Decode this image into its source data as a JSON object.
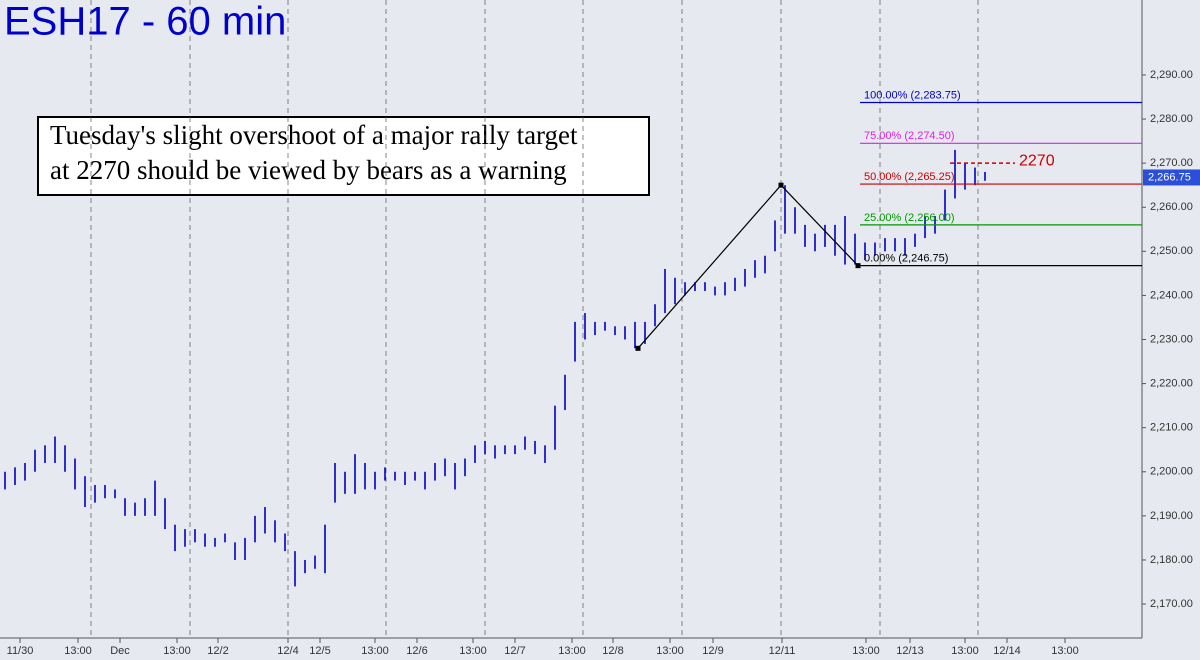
{
  "chart_data": {
    "type": "ohlc",
    "title": "ESH17 - 60 min",
    "annotation": [
      "Tuesday's slight overshoot of a major rally target",
      "at 2270 should be viewed by bears as a warning"
    ],
    "color": "#0000cc",
    "ylim": [
      2162.3,
      2307
    ],
    "yticks": [
      {
        "value": 2170,
        "label": "2,170.00"
      },
      {
        "value": 2180,
        "label": "2,180.00"
      },
      {
        "value": 2190,
        "label": "2,190.00"
      },
      {
        "value": 2200,
        "label": "2,200.00"
      },
      {
        "value": 2210,
        "label": "2,210.00"
      },
      {
        "value": 2220,
        "label": "2,220.00"
      },
      {
        "value": 2230,
        "label": "2,230.00"
      },
      {
        "value": 2240,
        "label": "2,240.00"
      },
      {
        "value": 2250,
        "label": "2,250.00"
      },
      {
        "value": 2260,
        "label": "2,260.00"
      },
      {
        "value": 2270,
        "label": "2,270.00"
      },
      {
        "value": 2280,
        "label": "2,280.00"
      },
      {
        "value": 2290,
        "label": "2,290.00"
      }
    ],
    "xlim": [
      0,
      114.2
    ],
    "xticks": [
      {
        "value": 2.0,
        "label": "11/30"
      },
      {
        "value": 7.8,
        "label": "13:00"
      },
      {
        "value": 12.0,
        "label": "Dec"
      },
      {
        "value": 17.7,
        "label": "13:00"
      },
      {
        "value": 21.8,
        "label": "12/2"
      },
      {
        "value": 28.8,
        "label": "12/4"
      },
      {
        "value": 32.0,
        "label": "12/5"
      },
      {
        "value": 37.5,
        "label": "13:00"
      },
      {
        "value": 41.7,
        "label": "12/6"
      },
      {
        "value": 47.3,
        "label": "13:00"
      },
      {
        "value": 51.5,
        "label": "12/7"
      },
      {
        "value": 57.2,
        "label": "13:00"
      },
      {
        "value": 61.3,
        "label": "12/8"
      },
      {
        "value": 67.0,
        "label": "13:00"
      },
      {
        "value": 71.3,
        "label": "12/9"
      },
      {
        "value": 78.2,
        "label": "12/11"
      },
      {
        "value": 86.6,
        "label": "13:00"
      },
      {
        "value": 91.0,
        "label": "12/13"
      },
      {
        "value": 96.5,
        "label": "13:00"
      },
      {
        "value": 100.7,
        "label": "12/14"
      },
      {
        "value": 106.5,
        "label": "13:00"
      }
    ],
    "xgrid": [
      9.1,
      19.0,
      28.8,
      38.6,
      48.5,
      58.3,
      68.2,
      78.1,
      88.0,
      97.8
    ],
    "low": [
      2196,
      2197,
      2198,
      2200,
      2202,
      2202,
      2200,
      2196,
      2192,
      2193,
      2194,
      2194,
      2190,
      2190,
      2190,
      2190,
      2187,
      2182,
      2183,
      2184,
      2183,
      2183,
      2184,
      2180,
      2180,
      2184,
      2186,
      2184,
      2182,
      2174,
      2177,
      2178,
      2177,
      2193,
      2195,
      2195,
      2196,
      2196,
      2198,
      2198,
      2197,
      2198,
      2196,
      2198,
      2199,
      2196,
      2199,
      2202,
      2204,
      2203,
      2204,
      2204,
      2205,
      2204,
      2202,
      2205,
      2214,
      2225,
      2230,
      2231,
      2232,
      2231,
      2230,
      2228,
      2229,
      2233,
      2236,
      2238,
      2240,
      2241,
      2241,
      2240,
      2240,
      2241,
      2242,
      2244,
      2245,
      2250,
      2254,
      2254,
      2251,
      2250,
      2251,
      2249,
      2247,
      2247,
      2248,
      2249,
      2250,
      2250,
      2249,
      2251,
      2253,
      2254,
      2257,
      2262,
      2264,
      2265,
      2266
    ],
    "high": [
      2200,
      2201,
      2202,
      2205,
      2206,
      2208,
      2206,
      2203,
      2199,
      2197,
      2197,
      2196,
      2194,
      2193,
      2194,
      2198,
      2194,
      2188,
      2187,
      2187,
      2186,
      2185,
      2186,
      2184,
      2185,
      2190,
      2192,
      2189,
      2186,
      2182,
      2180,
      2181,
      2188,
      2202,
      2200,
      2204,
      2202,
      2200,
      2201,
      2200,
      2200,
      2200,
      2200,
      2202,
      2203,
      2202,
      2203,
      2206,
      2207,
      2206,
      2206,
      2206,
      2208,
      2207,
      2206,
      2215,
      2222,
      2234,
      2236,
      2234,
      2234,
      2233,
      2233,
      2234,
      2234,
      2238,
      2246,
      2244,
      2243,
      2243,
      2243,
      2242,
      2243,
      2244,
      2246,
      2248,
      2249,
      2257,
      2265,
      2260,
      2256,
      2254,
      2256,
      2256,
      2258,
      2254,
      2252,
      2252,
      2253,
      2253,
      2253,
      2254,
      2258,
      2258,
      2264,
      2273,
      2270,
      2269,
      2268
    ],
    "last_price": {
      "value": 2266.75,
      "label": "2,266.75"
    },
    "fib_start": 86.0,
    "fib_levels": [
      {
        "value": 2283.75,
        "label": "100.00% (2,283.75)",
        "color": "#0000cc"
      },
      {
        "value": 2274.5,
        "label": "75.00% (2,274.50)",
        "color": "#e020e0"
      },
      {
        "value": 2265.25,
        "label": "50.00% (2,265.25)",
        "color": "#cc0000"
      },
      {
        "value": 2256.0,
        "label": "25.00% (2,256.00)",
        "color": "#009900"
      },
      {
        "value": 2246.75,
        "label": "0.00% (2,246.75)",
        "color": "#000000"
      }
    ],
    "zigzag": {
      "x": [
        63.8,
        78.1,
        85.8
      ],
      "y": [
        2228,
        2265,
        2246.75
      ]
    },
    "target": {
      "value": 2270,
      "label": "2270",
      "x": [
        95.0,
        101.5
      ],
      "color": "#cc0000"
    }
  }
}
